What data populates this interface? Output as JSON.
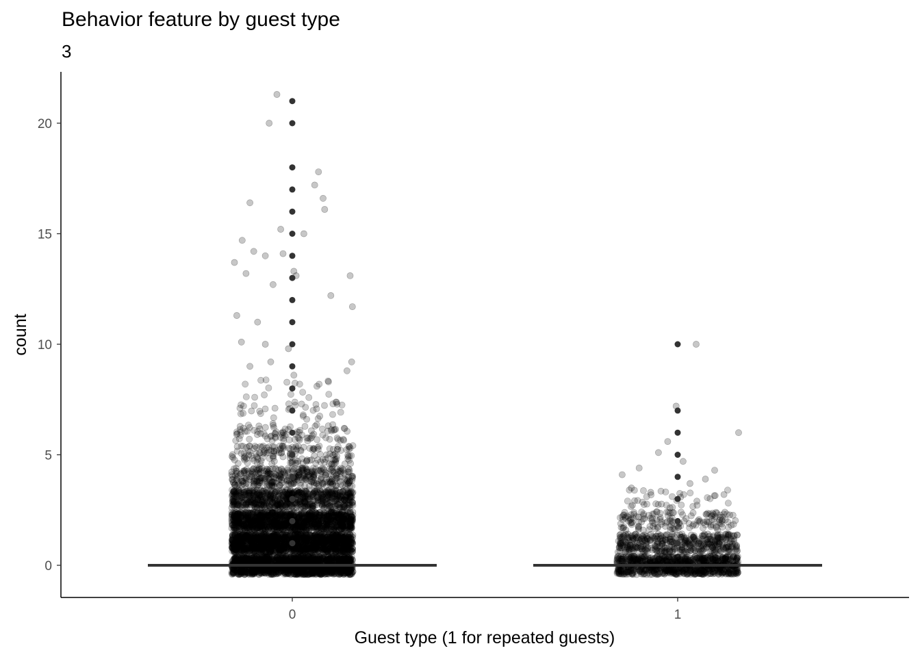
{
  "chart_data": {
    "type": "scatter",
    "title": "Behavior feature by guest type",
    "subtitle": "3",
    "xlabel": "Guest type (1 for repeated guests)",
    "ylabel": "count",
    "categories": [
      "0",
      "1"
    ],
    "yticks": [
      0,
      5,
      10,
      15,
      20
    ],
    "ylim": [
      -1.4,
      22.2
    ],
    "grid": false,
    "jitter": true,
    "point_color": "#000000",
    "boxplot_color": "#333333",
    "series": [
      {
        "category": "0",
        "median": 0,
        "distinct_values": [
          0,
          1,
          2,
          3,
          4,
          5,
          6,
          7,
          8,
          9,
          10,
          11,
          12,
          13,
          14,
          15,
          16,
          17,
          18,
          20,
          21
        ],
        "extra_jittered_points": [
          [
            21.3,
            -0.2
          ],
          [
            20.0,
            -0.3
          ],
          [
            16.4,
            -0.55
          ],
          [
            14.7,
            -0.65
          ],
          [
            14.2,
            -0.5
          ],
          [
            14.0,
            -0.35
          ],
          [
            13.7,
            -0.75
          ],
          [
            13.2,
            -0.6
          ],
          [
            12.7,
            -0.25
          ],
          [
            11.3,
            -0.72
          ],
          [
            11.0,
            -0.45
          ],
          [
            10.1,
            -0.66
          ],
          [
            10.0,
            -0.35
          ],
          [
            9.8,
            -0.05
          ],
          [
            9.2,
            -0.28
          ],
          [
            9.0,
            -0.55
          ],
          [
            15.2,
            -0.15
          ],
          [
            15.0,
            0.15
          ],
          [
            14.1,
            -0.12
          ],
          [
            13.1,
            0.05
          ],
          [
            13.3,
            0.02
          ],
          [
            12.2,
            0.5
          ],
          [
            11.7,
            0.78
          ],
          [
            13.1,
            0.75
          ],
          [
            17.8,
            0.34
          ],
          [
            17.2,
            0.29
          ],
          [
            16.6,
            0.4
          ],
          [
            16.1,
            0.42
          ],
          [
            9.2,
            0.77
          ],
          [
            8.8,
            0.71
          ],
          [
            8.3,
            0.47
          ],
          [
            8.1,
            0.32
          ],
          [
            8.6,
            0.02
          ]
        ]
      },
      {
        "category": "1",
        "median": 0,
        "distinct_values": [
          0,
          1,
          2,
          3,
          4,
          5,
          6,
          7,
          10
        ],
        "extra_jittered_points": [
          [
            10.0,
            0.24
          ],
          [
            7.2,
            -0.02
          ],
          [
            6.0,
            0.79
          ],
          [
            5.6,
            -0.13
          ],
          [
            5.1,
            -0.25
          ],
          [
            4.7,
            0.07
          ],
          [
            4.3,
            0.48
          ],
          [
            4.1,
            -0.72
          ],
          [
            4.4,
            -0.5
          ],
          [
            3.9,
            0.36
          ],
          [
            3.7,
            0.16
          ],
          [
            3.5,
            -0.6
          ],
          [
            3.3,
            -0.35
          ],
          [
            3.2,
            0.6
          ],
          [
            2.9,
            0.25
          ],
          [
            2.6,
            -0.1
          ]
        ]
      }
    ]
  }
}
